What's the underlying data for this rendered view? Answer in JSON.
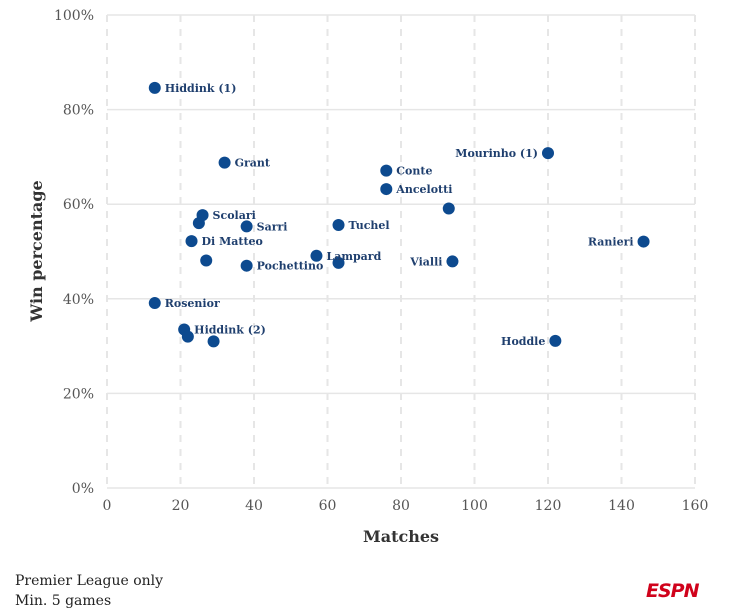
{
  "chart_data": {
    "type": "scatter",
    "xlabel": "Matches",
    "ylabel": "Win percentage",
    "xlim": [
      0,
      160
    ],
    "ylim": [
      0,
      100
    ],
    "x_ticks": [
      "0",
      "20",
      "40",
      "60",
      "80",
      "100",
      "120",
      "140",
      "160"
    ],
    "y_ticks": [
      "0%",
      "20%",
      "40%",
      "60%",
      "80%",
      "100%"
    ],
    "grid": "vertical dashed, horizontal solid",
    "marker_color": "#0d4a8f",
    "label_color": "#1f3f6e",
    "points": [
      {
        "label": "Hiddink (1)",
        "x": 13,
        "y": 84.6,
        "label_side": "right"
      },
      {
        "label": "Grant",
        "x": 32,
        "y": 68.8,
        "label_side": "right"
      },
      {
        "label": "Mourinho (1)",
        "x": 120,
        "y": 70.8,
        "label_side": "left"
      },
      {
        "label": "Conte",
        "x": 76,
        "y": 67.1,
        "label_side": "right"
      },
      {
        "label": "Ancelotti",
        "x": 76,
        "y": 63.2,
        "label_side": "right"
      },
      {
        "label": "",
        "x": 93,
        "y": 59.1,
        "label_side": "none"
      },
      {
        "label": "Scolari",
        "x": 26,
        "y": 57.7,
        "label_side": "right"
      },
      {
        "label": "",
        "x": 25,
        "y": 56.0,
        "label_side": "none"
      },
      {
        "label": "Sarri",
        "x": 38,
        "y": 55.3,
        "label_side": "right"
      },
      {
        "label": "Tuchel",
        "x": 63,
        "y": 55.6,
        "label_side": "right"
      },
      {
        "label": "Di Matteo",
        "x": 23,
        "y": 52.2,
        "label_side": "right"
      },
      {
        "label": "Ranieri",
        "x": 146,
        "y": 52.1,
        "label_side": "left"
      },
      {
        "label": "Lampard",
        "x": 57,
        "y": 49.1,
        "label_side": "right"
      },
      {
        "label": "",
        "x": 63,
        "y": 47.6,
        "label_side": "none"
      },
      {
        "label": "",
        "x": 27,
        "y": 48.1,
        "label_side": "none"
      },
      {
        "label": "Pochettino",
        "x": 38,
        "y": 47.0,
        "label_side": "right"
      },
      {
        "label": "Vialli",
        "x": 94,
        "y": 47.9,
        "label_side": "left"
      },
      {
        "label": "Rosenior",
        "x": 13,
        "y": 39.1,
        "label_side": "right"
      },
      {
        "label": "Hiddink (2)",
        "x": 21,
        "y": 33.5,
        "label_side": "right"
      },
      {
        "label": "",
        "x": 22,
        "y": 32.0,
        "label_side": "none"
      },
      {
        "label": "",
        "x": 29,
        "y": 31.0,
        "label_side": "none"
      },
      {
        "label": "Hoddle",
        "x": 122,
        "y": 31.1,
        "label_side": "left"
      }
    ]
  },
  "footnotes": [
    "Premier League only",
    "Min. 5 games"
  ],
  "logo_text": "ESPN",
  "logo_color": "#d0021b"
}
